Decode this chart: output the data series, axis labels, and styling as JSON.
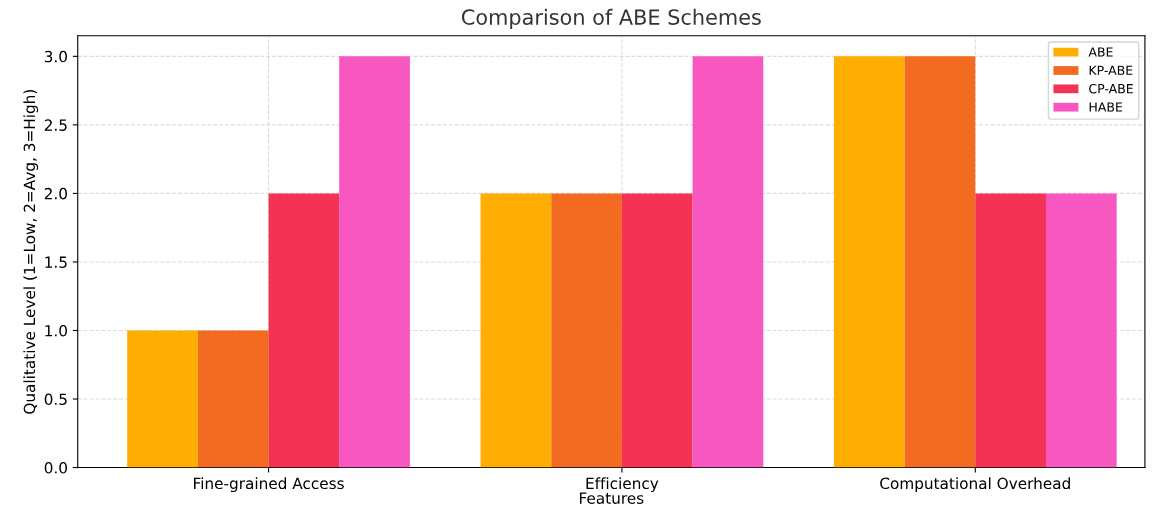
{
  "chart_data": {
    "type": "bar",
    "title": "Comparison of ABE Schemes",
    "xlabel": "Features",
    "ylabel": "Qualitative Level (1=Low, 2=Avg, 3=High)",
    "categories": [
      "Fine-grained Access",
      "Efficiency",
      "Computational Overhead"
    ],
    "series": [
      {
        "name": "ABE",
        "color": "#ffad00",
        "values": [
          1,
          2,
          3
        ]
      },
      {
        "name": "KP-ABE",
        "color": "#f26b21",
        "values": [
          1,
          2,
          3
        ]
      },
      {
        "name": "CP-ABE",
        "color": "#f43254",
        "values": [
          2,
          2,
          2
        ]
      },
      {
        "name": "HABE",
        "color": "#f857c1",
        "values": [
          3,
          3,
          2
        ]
      }
    ],
    "ylim": [
      0,
      3.15
    ],
    "yticks": [
      {
        "value": 0,
        "label": "0.0"
      },
      {
        "value": 0.5,
        "label": "0.5"
      },
      {
        "value": 1,
        "label": "1.0"
      },
      {
        "value": 1.5,
        "label": "1.5"
      },
      {
        "value": 2,
        "label": "2.0"
      },
      {
        "value": 2.5,
        "label": "2.5"
      },
      {
        "value": 3,
        "label": "3.0"
      }
    ],
    "grid": true,
    "legend": "top right"
  }
}
